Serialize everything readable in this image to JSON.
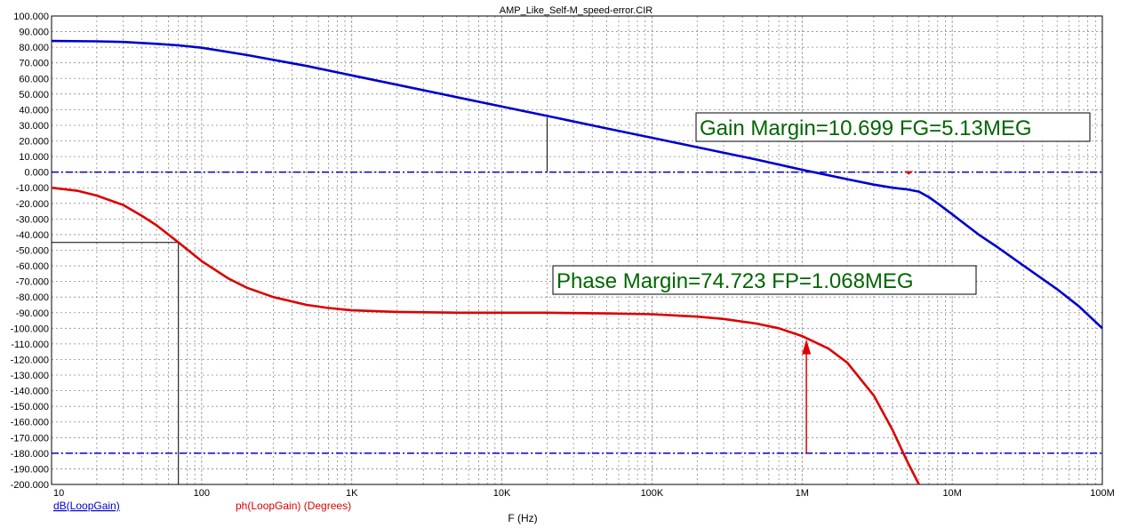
{
  "chart_data": {
    "type": "line",
    "title": "AMP_Like_Self-M_speed-error.CIR",
    "xlabel": "F (Hz)",
    "x_scale": "log",
    "xlim": [
      10,
      100000000
    ],
    "ylim": [
      -200,
      100
    ],
    "grid": true,
    "x_ticks": [
      {
        "value": 10,
        "label": "10"
      },
      {
        "value": 100,
        "label": "100"
      },
      {
        "value": 1000,
        "label": "1K"
      },
      {
        "value": 10000,
        "label": "10K"
      },
      {
        "value": 100000,
        "label": "100K"
      },
      {
        "value": 1000000,
        "label": "1M"
      },
      {
        "value": 10000000,
        "label": "10M"
      },
      {
        "value": 100000000,
        "label": "100M"
      }
    ],
    "y_ticks": [
      {
        "value": 100,
        "label": "100.000"
      },
      {
        "value": 90,
        "label": "90.000"
      },
      {
        "value": 80,
        "label": "80.000"
      },
      {
        "value": 70,
        "label": "70.000"
      },
      {
        "value": 60,
        "label": "60.000"
      },
      {
        "value": 50,
        "label": "50.000"
      },
      {
        "value": 40,
        "label": "40.000"
      },
      {
        "value": 30,
        "label": "30.000"
      },
      {
        "value": 20,
        "label": "20.000"
      },
      {
        "value": 10,
        "label": "10.000"
      },
      {
        "value": 0,
        "label": "0.000"
      },
      {
        "value": -10,
        "label": "-10.000"
      },
      {
        "value": -20,
        "label": "-20.000"
      },
      {
        "value": -30,
        "label": "-30.000"
      },
      {
        "value": -40,
        "label": "-40.000"
      },
      {
        "value": -50,
        "label": "-50.000"
      },
      {
        "value": -60,
        "label": "-60.000"
      },
      {
        "value": -70,
        "label": "-70.000"
      },
      {
        "value": -80,
        "label": "-80.000"
      },
      {
        "value": -90,
        "label": "-90.000"
      },
      {
        "value": -100,
        "label": "-100.000"
      },
      {
        "value": -110,
        "label": "-110.000"
      },
      {
        "value": -120,
        "label": "-120.000"
      },
      {
        "value": -130,
        "label": "-130.000"
      },
      {
        "value": -140,
        "label": "-140.000"
      },
      {
        "value": -150,
        "label": "-150.000"
      },
      {
        "value": -160,
        "label": "-160.000"
      },
      {
        "value": -170,
        "label": "-170.000"
      },
      {
        "value": -180,
        "label": "-180.000"
      },
      {
        "value": -190,
        "label": "-190.000"
      },
      {
        "value": -200,
        "label": "-200.000"
      }
    ],
    "series": [
      {
        "name": "dB(LoopGain)",
        "color": "#0000cc",
        "x": [
          10,
          20,
          30,
          50,
          70,
          100,
          200,
          500,
          1000,
          2000,
          5000,
          10000,
          20000,
          50000,
          100000,
          200000,
          500000,
          1000000,
          1500000,
          2000000,
          3000000,
          4000000,
          5000000,
          6000000,
          7000000,
          8000000,
          10000000,
          15000000,
          20000000,
          30000000,
          50000000,
          70000000,
          100000000
        ],
        "y": [
          84,
          83.8,
          83.4,
          82.2,
          81.2,
          79.7,
          75,
          68,
          62,
          56,
          48,
          42,
          36,
          28,
          22,
          16,
          8,
          1.5,
          -2,
          -4.5,
          -8,
          -10,
          -11,
          -12.5,
          -16,
          -20,
          -27,
          -40,
          -48,
          -60,
          -75,
          -86,
          -100
        ]
      },
      {
        "name": "ph(LoopGain) (Degrees)",
        "color": "#dd0000",
        "x": [
          10,
          15,
          20,
          30,
          40,
          50,
          70,
          100,
          150,
          200,
          300,
          500,
          700,
          1000,
          2000,
          5000,
          10000,
          20000,
          50000,
          100000,
          200000,
          300000,
          500000,
          700000,
          1000000,
          1500000,
          2000000,
          3000000,
          4000000,
          5000000,
          6000000
        ],
        "y": [
          -10,
          -12,
          -15,
          -21,
          -28,
          -34,
          -45,
          -57,
          -68,
          -74,
          -80,
          -85,
          -87,
          -88.5,
          -89.5,
          -90,
          -90,
          -90,
          -90.5,
          -91,
          -92.5,
          -94,
          -97,
          -100,
          -105,
          -113,
          -122,
          -143,
          -165,
          -185,
          -200
        ]
      }
    ],
    "reference_lines": [
      {
        "y": 0,
        "style": "dash-dot",
        "color": "#0000cc"
      },
      {
        "y": -180,
        "style": "dash-dot",
        "color": "#0000cc"
      }
    ],
    "annotations": [
      {
        "text": "Gain Margin=10.699 FG=5.13MEG",
        "color": "#006600",
        "x": 5130000,
        "y": -10.699
      },
      {
        "text": "Phase Margin=74.723 FP=1.068MEG",
        "color": "#006600",
        "x": 1068000,
        "y": -105.277
      }
    ],
    "cursor_lines": [
      {
        "x": 20000,
        "y_from": 0,
        "y_to": 35
      },
      {
        "x": 70,
        "y_from": -200,
        "y_to": -45
      },
      {
        "x_from": 10,
        "x_to": 70,
        "y": -45
      }
    ],
    "legend": [
      {
        "text": "dB(LoopGain)",
        "color": "#0000cc"
      },
      {
        "text": "ph(LoopGain) (Degrees)",
        "color": "#dd0000"
      }
    ]
  }
}
